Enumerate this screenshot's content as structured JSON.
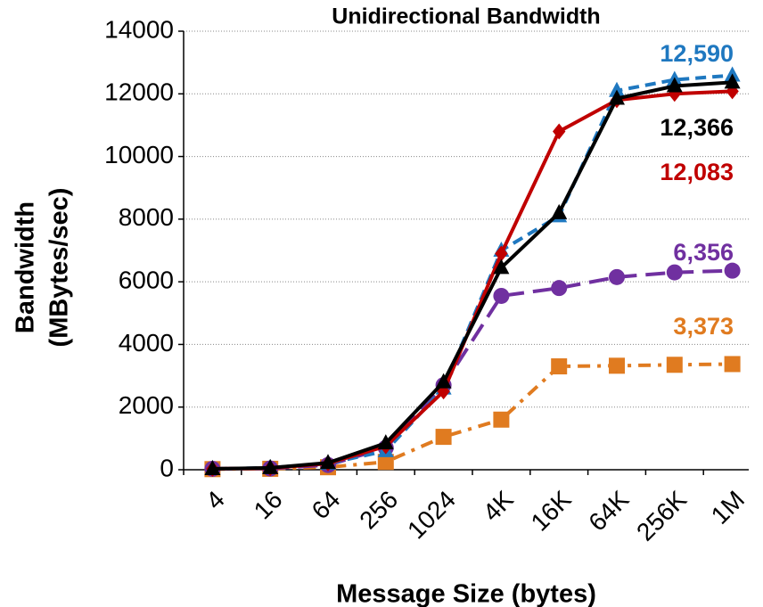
{
  "chart_data": {
    "type": "line",
    "title": "Unidirectional Bandwidth",
    "xlabel": "Message Size (bytes)",
    "ylabel": [
      "Bandwidth",
      "(MBytes/sec)"
    ],
    "categories": [
      "4",
      "16",
      "64",
      "256",
      "1024",
      "4K",
      "16K",
      "64K",
      "256K",
      "1M"
    ],
    "ylim": [
      0,
      14000
    ],
    "yticks": [
      0,
      2000,
      4000,
      6000,
      8000,
      10000,
      12000,
      14000
    ],
    "grid": true,
    "series": [
      {
        "color": "#e07b20",
        "dash": "dashdot",
        "marker": "square",
        "values": [
          20,
          30,
          80,
          250,
          1050,
          1600,
          3300,
          3320,
          3350,
          3373
        ],
        "value_labels": [
          null,
          null,
          null,
          null,
          null,
          null,
          null,
          null,
          null,
          "3,373"
        ]
      },
      {
        "color": "#7030a0",
        "dash": "longdash",
        "marker": "circle",
        "values": [
          30,
          40,
          150,
          700,
          2700,
          5550,
          5800,
          6150,
          6300,
          6356
        ],
        "value_labels": [
          null,
          null,
          null,
          null,
          null,
          null,
          null,
          null,
          null,
          "6,356"
        ]
      },
      {
        "color": "#1f78c0",
        "dash": "dash",
        "marker": "triangle",
        "values": [
          30,
          60,
          200,
          600,
          2600,
          7000,
          8100,
          12100,
          12450,
          12590
        ],
        "value_labels": [
          null,
          null,
          null,
          null,
          null,
          null,
          null,
          null,
          null,
          "12,590"
        ]
      },
      {
        "color": "#c00000",
        "dash": "solid",
        "marker": "diamond",
        "values": [
          30,
          50,
          200,
          750,
          2500,
          6900,
          10800,
          11800,
          12000,
          12083
        ],
        "value_labels": [
          null,
          null,
          null,
          null,
          null,
          null,
          null,
          null,
          null,
          "12,083"
        ]
      },
      {
        "color": "#000000",
        "dash": "solid",
        "marker": "triangle",
        "values": [
          30,
          60,
          220,
          850,
          2800,
          6450,
          8200,
          11850,
          12250,
          12366
        ],
        "value_labels": [
          null,
          null,
          null,
          null,
          null,
          null,
          null,
          null,
          null,
          "12,366"
        ]
      }
    ]
  }
}
